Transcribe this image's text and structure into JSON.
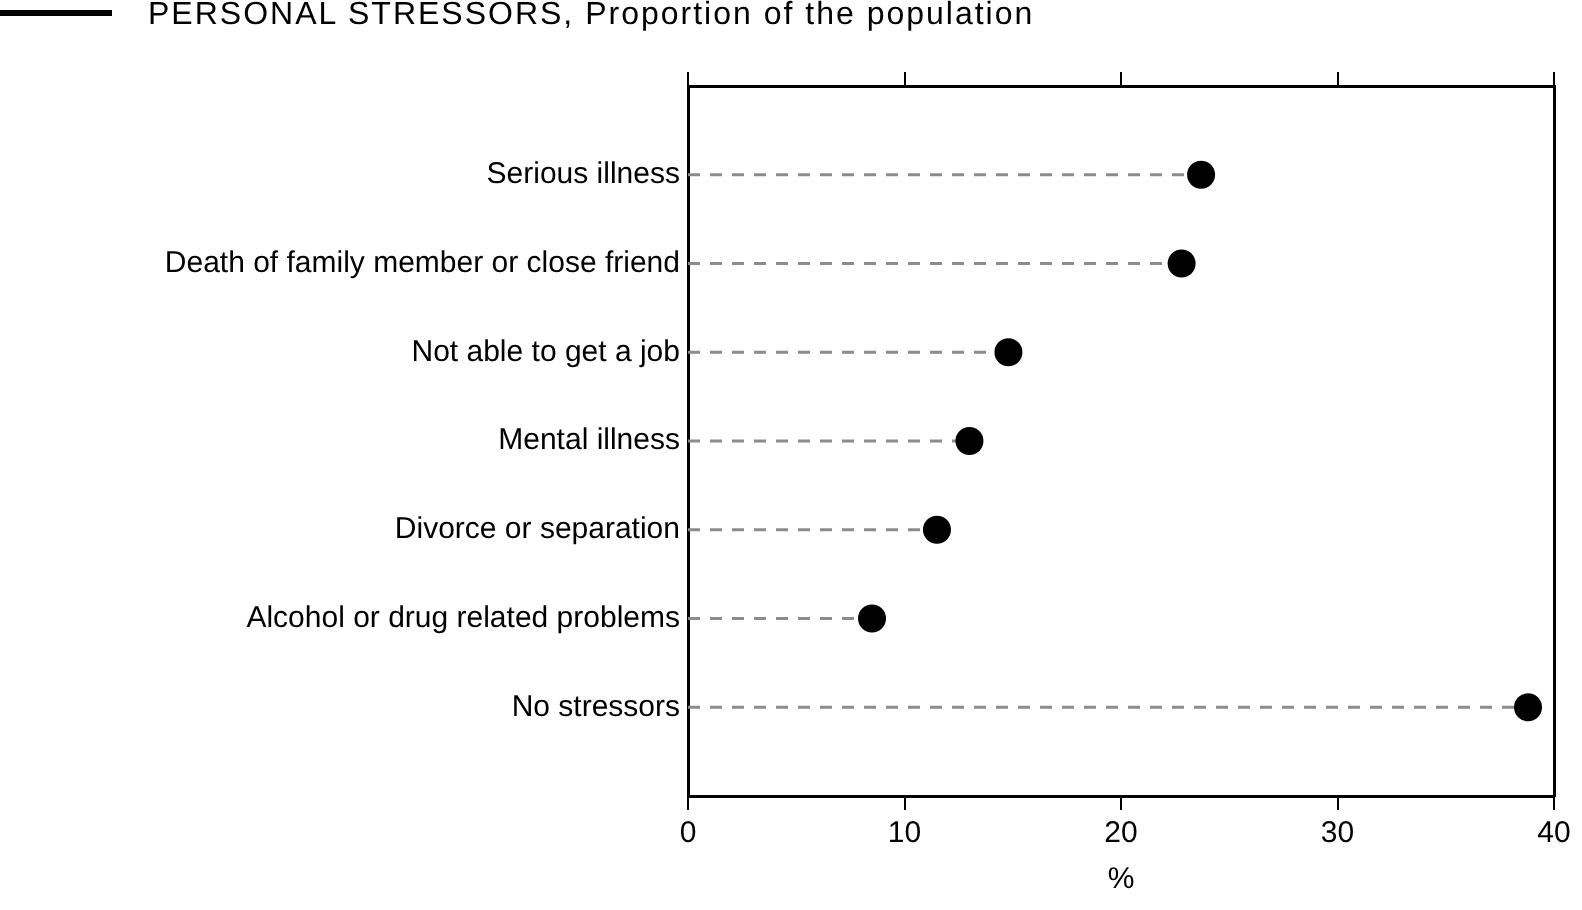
{
  "chart_data": {
    "type": "lollipop",
    "orientation": "horizontal",
    "title": "PERSONAL STRESSORS, Proportion of the population",
    "xlabel": "%",
    "categories": [
      "Serious illness",
      "Death of family member or close friend",
      "Not able to get a job",
      "Mental illness",
      "Divorce or separation",
      "Alcohol or drug related problems",
      "No stressors"
    ],
    "values": [
      23.7,
      22.8,
      14.8,
      13.0,
      11.5,
      8.5,
      38.8
    ],
    "color": "#000000",
    "marker": "circle",
    "line_style": "dashed",
    "xlim": [
      0,
      40
    ],
    "xticks": [
      0,
      10,
      20,
      30,
      40
    ],
    "grid": false,
    "legend": false
  }
}
